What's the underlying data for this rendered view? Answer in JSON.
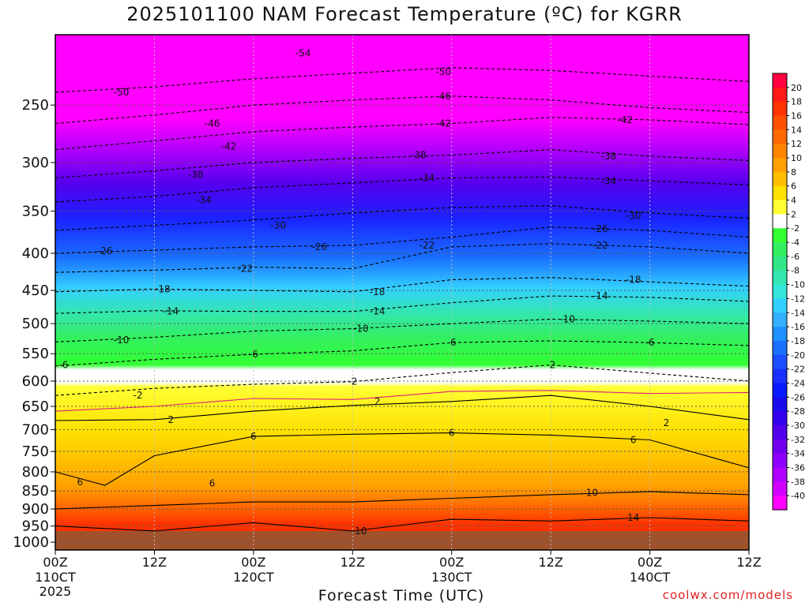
{
  "chart_data": {
    "type": "heatmap",
    "title": "2025101100 NAM Forecast Temperature (ºC) for KGRR",
    "xlabel": "Forecast Time (UTC)",
    "ylabel": "",
    "credit": "coolwx.com/models",
    "x_ticks": [
      {
        "hour": 0,
        "label": "00Z",
        "sub": "110CT",
        "sub2": "2025"
      },
      {
        "hour": 12,
        "label": "12Z",
        "sub": "",
        "sub2": ""
      },
      {
        "hour": 24,
        "label": "00Z",
        "sub": "120CT",
        "sub2": ""
      },
      {
        "hour": 36,
        "label": "12Z",
        "sub": "",
        "sub2": ""
      },
      {
        "hour": 48,
        "label": "00Z",
        "sub": "130CT",
        "sub2": ""
      },
      {
        "hour": 60,
        "label": "12Z",
        "sub": "",
        "sub2": ""
      },
      {
        "hour": 72,
        "label": "00Z",
        "sub": "140CT",
        "sub2": ""
      },
      {
        "hour": 84,
        "label": "12Z",
        "sub": "",
        "sub2": ""
      }
    ],
    "xlim": [
      0,
      84
    ],
    "y_ticks": [
      250,
      300,
      350,
      400,
      450,
      500,
      550,
      600,
      650,
      700,
      750,
      800,
      850,
      900,
      950,
      1000
    ],
    "ylim": [
      1025,
      200
    ],
    "y_scale": "log-pressure",
    "colorbar": {
      "labels": [
        20,
        18,
        16,
        14,
        12,
        10,
        8,
        6,
        4,
        2,
        -2,
        -4,
        -6,
        -8,
        -10,
        -12,
        -14,
        -16,
        -18,
        -20,
        -22,
        -24,
        -26,
        -28,
        -30,
        -32,
        -34,
        -36,
        -38,
        -40
      ],
      "colors": [
        "#ff0040",
        "#ff1a1a",
        "#ff3300",
        "#ff5000",
        "#ff6a00",
        "#ff8500",
        "#ffa000",
        "#ffbf00",
        "#ffe000",
        "#ffff33",
        "#ffffff",
        "#33ff33",
        "#33f060",
        "#33e68a",
        "#33e6b0",
        "#33e6d9",
        "#33d0ff",
        "#33b0ff",
        "#1e90ff",
        "#1a70ff",
        "#1a50ff",
        "#1a30ff",
        "#0a1aff",
        "#1a0aee",
        "#3300ee",
        "#5200ee",
        "#7000ee",
        "#9000ff",
        "#b000ff",
        "#d000ff",
        "#ff00ff"
      ]
    },
    "contour_labels": [
      {
        "text": "-54",
        "h": 30,
        "p": 212
      },
      {
        "text": "-50",
        "h": 8,
        "p": 240
      },
      {
        "text": "-50",
        "h": 47,
        "p": 225
      },
      {
        "text": "-46",
        "h": 19,
        "p": 265
      },
      {
        "text": "-46",
        "h": 47,
        "p": 243
      },
      {
        "text": "-42",
        "h": 21,
        "p": 285
      },
      {
        "text": "-42",
        "h": 47,
        "p": 265
      },
      {
        "text": "-42",
        "h": 69,
        "p": 262
      },
      {
        "text": "-38",
        "h": 17,
        "p": 312
      },
      {
        "text": "-38",
        "h": 44,
        "p": 293
      },
      {
        "text": "-38",
        "h": 67,
        "p": 294
      },
      {
        "text": "-34",
        "h": 18,
        "p": 338
      },
      {
        "text": "-34",
        "h": 45,
        "p": 315
      },
      {
        "text": "-34",
        "h": 67,
        "p": 318
      },
      {
        "text": "-30",
        "h": 27,
        "p": 366
      },
      {
        "text": "-30",
        "h": 70,
        "p": 355
      },
      {
        "text": "-26",
        "h": 6,
        "p": 397
      },
      {
        "text": "-26",
        "h": 32,
        "p": 392
      },
      {
        "text": "-26",
        "h": 66,
        "p": 370
      },
      {
        "text": "-22",
        "h": 23,
        "p": 420
      },
      {
        "text": "-22",
        "h": 45,
        "p": 390
      },
      {
        "text": "-22",
        "h": 66,
        "p": 390
      },
      {
        "text": "-18",
        "h": 13,
        "p": 448
      },
      {
        "text": "-18",
        "h": 39,
        "p": 452
      },
      {
        "text": "-18",
        "h": 70,
        "p": 435
      },
      {
        "text": "-14",
        "h": 14,
        "p": 481
      },
      {
        "text": "-14",
        "h": 39,
        "p": 481
      },
      {
        "text": "-14",
        "h": 66,
        "p": 458
      },
      {
        "text": "-10",
        "h": 8,
        "p": 527
      },
      {
        "text": "-10",
        "h": 37,
        "p": 508
      },
      {
        "text": "-10",
        "h": 62,
        "p": 493
      },
      {
        "text": "-6",
        "h": 1,
        "p": 570
      },
      {
        "text": "-6",
        "h": 24,
        "p": 551
      },
      {
        "text": "-6",
        "h": 48,
        "p": 531
      },
      {
        "text": "-6",
        "h": 72,
        "p": 531
      },
      {
        "text": "-2",
        "h": 36,
        "p": 601
      },
      {
        "text": "-2",
        "h": 60,
        "p": 570
      },
      {
        "text": "-2",
        "h": 10,
        "p": 628
      },
      {
        "text": "2",
        "h": 39,
        "p": 640
      },
      {
        "text": "2",
        "h": 14,
        "p": 678
      },
      {
        "text": "2",
        "h": 74,
        "p": 685
      },
      {
        "text": "6",
        "h": 24,
        "p": 715
      },
      {
        "text": "6",
        "h": 48,
        "p": 707
      },
      {
        "text": "6",
        "h": 70,
        "p": 723
      },
      {
        "text": "6",
        "h": 3,
        "p": 827
      },
      {
        "text": "6",
        "h": 19,
        "p": 830
      },
      {
        "text": "10",
        "h": 65,
        "p": 855
      },
      {
        "text": "10",
        "h": 37,
        "p": 965
      },
      {
        "text": "14",
        "h": 70,
        "p": 925
      }
    ]
  }
}
